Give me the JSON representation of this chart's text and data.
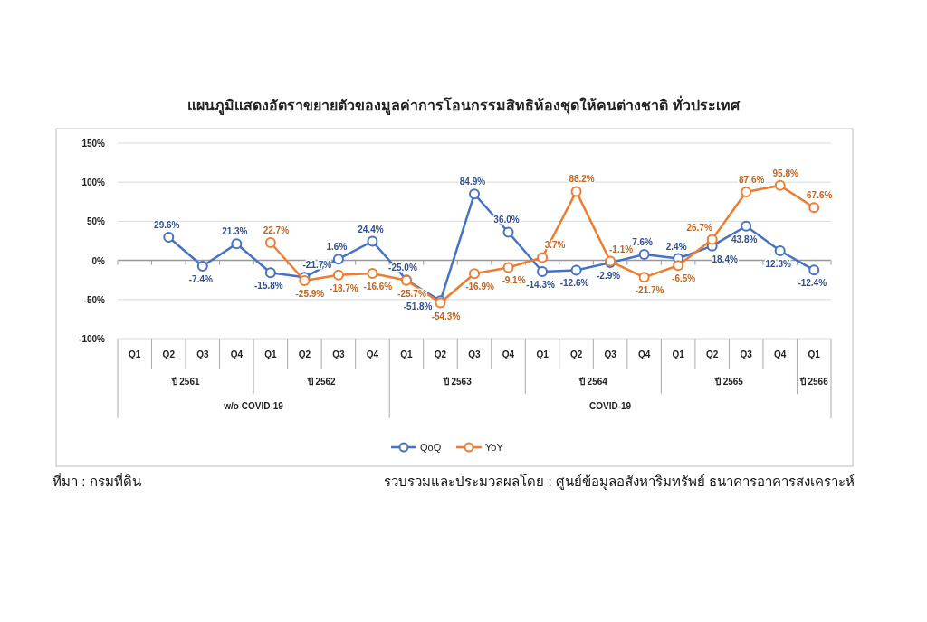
{
  "chart_data": {
    "type": "line",
    "title": "แผนภูมิแสดงอัตราขยายตัวของมูลค่าการโอนกรรมสิทธิห้องชุดให้คนต่างชาติ ทั่วประเทศ",
    "categories": [
      "Q1",
      "Q2",
      "Q3",
      "Q4",
      "Q1",
      "Q2",
      "Q3",
      "Q4",
      "Q1",
      "Q2",
      "Q3",
      "Q4",
      "Q1",
      "Q2",
      "Q3",
      "Q4",
      "Q1",
      "Q2",
      "Q3",
      "Q4",
      "Q1"
    ],
    "series": [
      {
        "name": "QoQ",
        "color": "#4472c4",
        "values": [
          null,
          29.6,
          -7.4,
          21.3,
          -15.8,
          -21.7,
          1.6,
          24.4,
          -25.0,
          -51.8,
          84.9,
          36.0,
          -14.3,
          -12.6,
          -2.9,
          7.6,
          2.4,
          18.4,
          43.8,
          12.3,
          -12.4
        ],
        "value_labels": [
          null,
          "29.6%",
          "-7.4%",
          "21.3%",
          "-15.8%",
          "-21.7%",
          "1.6%",
          "24.4%",
          "-25.0%",
          "-51.8%",
          "84.9%",
          "36.0%",
          "-14.3%",
          "-12.6%",
          "-2.9%",
          "7.6%",
          "2.4%",
          "18.4%",
          "43.8%",
          "12.3%",
          "-12.4%"
        ]
      },
      {
        "name": "YoY",
        "color": "#ed7d31",
        "values": [
          null,
          null,
          null,
          null,
          22.7,
          -25.9,
          -18.7,
          -16.6,
          -25.7,
          -54.3,
          -16.9,
          -9.1,
          3.7,
          88.2,
          -1.1,
          -21.7,
          -6.5,
          26.7,
          87.6,
          95.8,
          67.6
        ],
        "value_labels": [
          null,
          null,
          null,
          null,
          "22.7%",
          "-25.9%",
          "-18.7%",
          "-16.6%",
          "-25.7%",
          "-54.3%",
          "-16.9%",
          "-9.1%",
          "3.7%",
          "88.2%",
          "-1.1%",
          "-21.7%",
          "-6.5%",
          "26.7%",
          "87.6%",
          "95.8%",
          "67.6%"
        ]
      }
    ],
    "ylim": [
      -100,
      150
    ],
    "yticks": [
      {
        "value": -100,
        "label": "-100%"
      },
      {
        "value": -50,
        "label": "-50%"
      },
      {
        "value": 0,
        "label": "0%"
      },
      {
        "value": 50,
        "label": "50%"
      },
      {
        "value": 100,
        "label": "100%"
      },
      {
        "value": 150,
        "label": "150%"
      }
    ],
    "grid": "y",
    "legend": "bottom",
    "marker": "circle",
    "line_style": "solid",
    "annotations": [
      "ปี 2561",
      "ปี 2562",
      "ปี 2563",
      "ปี 2564",
      "ปี 2565",
      "ปี 2566",
      "w/o COVID-19",
      "COVID-19",
      "ที่มา : กรมที่ดิน",
      "รวบรวมและประมวลผลโดย : ศูนย์ข้อมูลอสังหาริมทรัพย์ ธนาคารอาคารสงเคราะห์"
    ]
  }
}
